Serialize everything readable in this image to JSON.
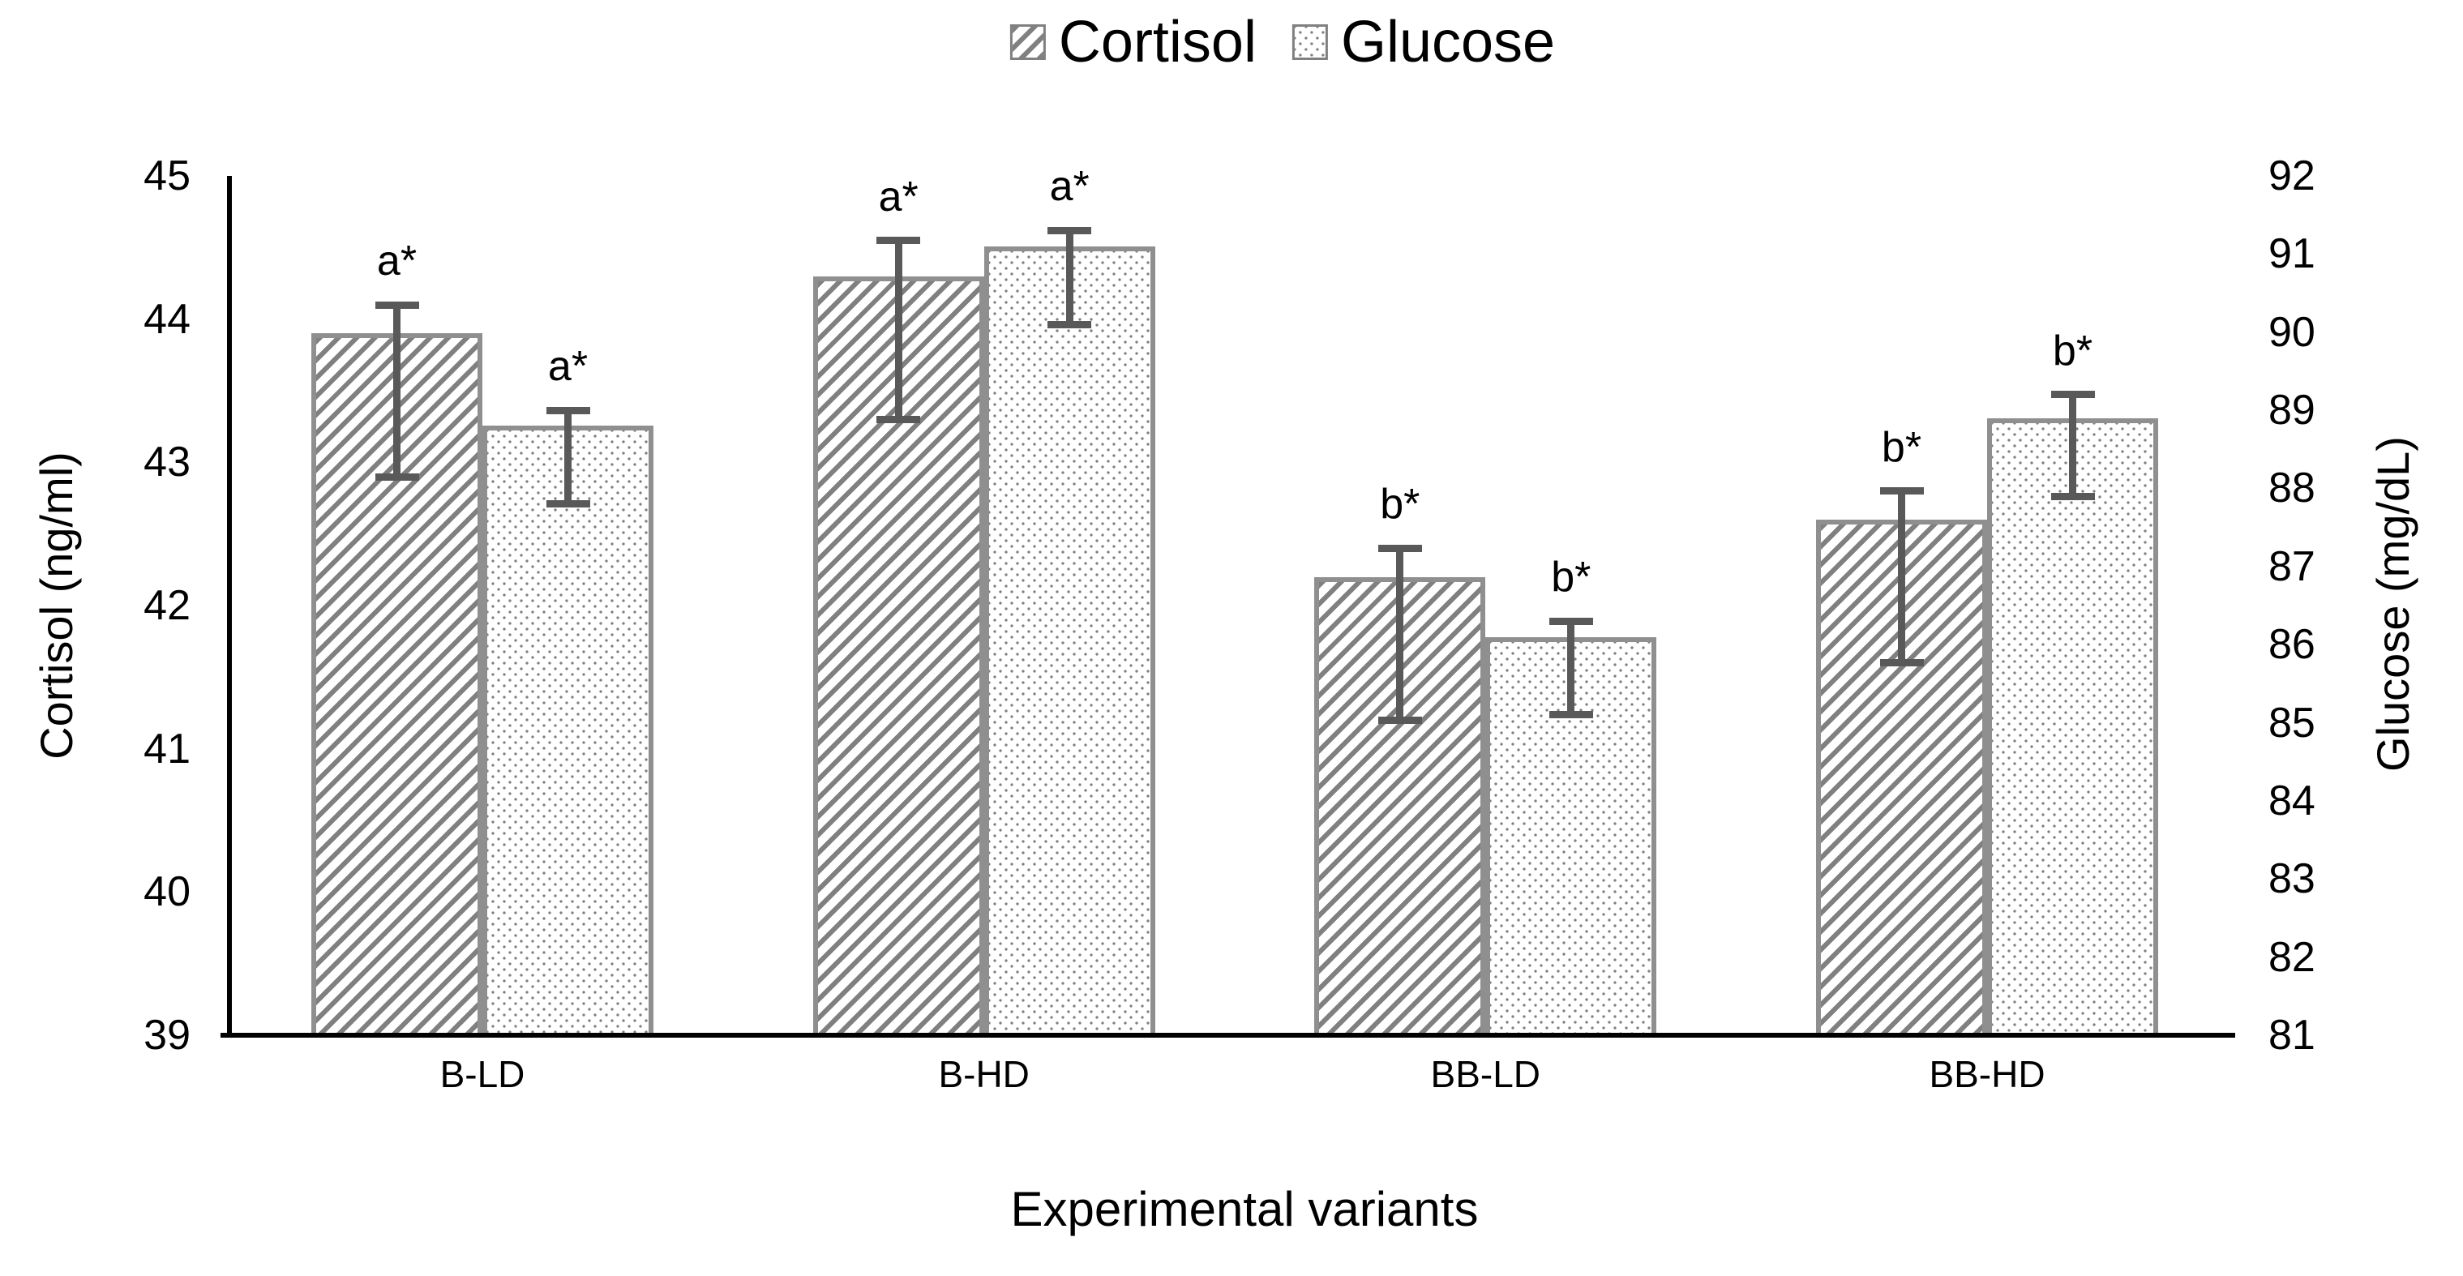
{
  "legend": {
    "items": [
      {
        "label": "Cortisol",
        "pattern": "hatch"
      },
      {
        "label": "Glucose",
        "pattern": "dots"
      }
    ]
  },
  "chart_data": {
    "type": "bar",
    "categories": [
      "B-LD",
      "B-HD",
      "BB-LD",
      "BB-HD"
    ],
    "xlabel": "Experimental variants",
    "grid": false,
    "legend_position": "top-center",
    "left_axis": {
      "title": "Cortisol (ng/ml)",
      "min": 39,
      "max": 45,
      "ticks": [
        39,
        40,
        41,
        42,
        43,
        44,
        45
      ]
    },
    "right_axis": {
      "title": "Glucose (mg/dL)",
      "min": 81,
      "max": 92,
      "ticks": [
        81,
        82,
        83,
        84,
        85,
        86,
        87,
        88,
        89,
        90,
        91,
        92
      ]
    },
    "series": [
      {
        "name": "Cortisol",
        "axis": "left",
        "pattern": "hatch",
        "values": [
          43.9,
          44.3,
          42.2,
          42.6
        ],
        "error_high": [
          44.1,
          44.55,
          42.4,
          42.8
        ],
        "error_low": [
          42.9,
          43.3,
          41.2,
          41.6
        ],
        "annotations": [
          "a*",
          "a*",
          "b*",
          "b*"
        ]
      },
      {
        "name": "Glucose",
        "axis": "right",
        "pattern": "dots",
        "values": [
          88.8,
          91.1,
          86.1,
          88.9
        ],
        "error_high": [
          89.0,
          91.3,
          86.3,
          89.2
        ],
        "error_low": [
          87.8,
          90.1,
          85.1,
          87.9
        ],
        "annotations": [
          "a*",
          "a*",
          "b*",
          "b*"
        ]
      }
    ],
    "colors": {
      "pattern_gray": "#808080",
      "bar_border": "#8f8f8f",
      "error_bar": "#595959",
      "axis_line": "#000000",
      "text": "#000000",
      "background": "#ffffff"
    }
  }
}
